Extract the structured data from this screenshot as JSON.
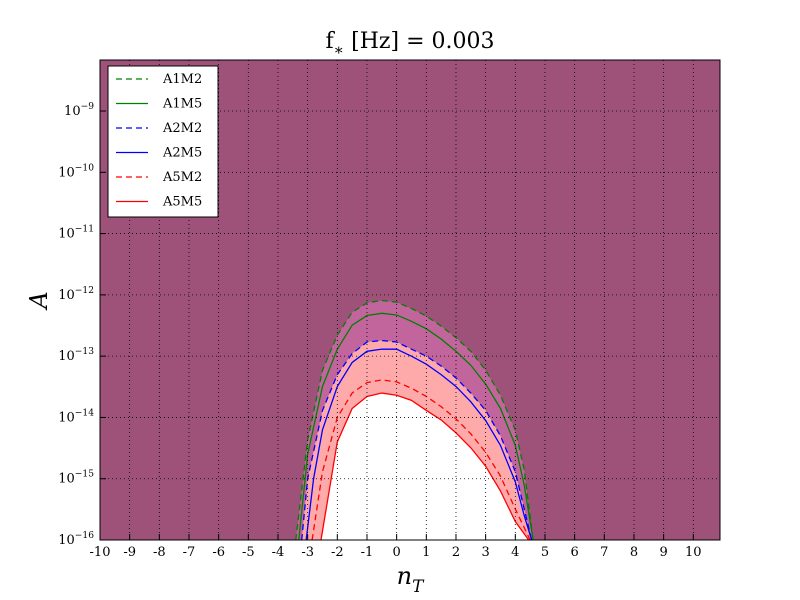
{
  "chart_data": {
    "type": "line",
    "title": "f_{∗} [Hz] = 0.003",
    "xlabel": "n_{T}",
    "ylabel": "A",
    "xlim": [
      -10,
      10.9
    ],
    "xticks": [
      -10,
      -9,
      -8,
      -7,
      -6,
      -5,
      -4,
      -3,
      -2,
      -1,
      0,
      1,
      2,
      3,
      4,
      5,
      6,
      7,
      8,
      9,
      10
    ],
    "ylim": [
      1e-16,
      6.8e-09
    ],
    "yscale": "log",
    "yticks": [
      {
        "value": 1e-16,
        "label": "10^{−16}"
      },
      {
        "value": 1e-15,
        "label": "10^{−15}"
      },
      {
        "value": 1e-14,
        "label": "10^{−14}"
      },
      {
        "value": 1e-13,
        "label": "10^{−13}"
      },
      {
        "value": 1e-12,
        "label": "10^{−12}"
      },
      {
        "value": 1e-11,
        "label": "10^{−11}"
      },
      {
        "value": 1e-10,
        "label": "10^{−10}"
      },
      {
        "value": 1e-09,
        "label": "10^{−9}"
      }
    ],
    "grid": true,
    "legend": "upper left",
    "plot_background": "#9e5279",
    "series": [
      {
        "name": "A1M2",
        "color": "#008000",
        "dash": true,
        "fill": "#c1659c",
        "x": [
          -3.4,
          -3,
          -2.5,
          -2,
          -1.5,
          -1,
          -0.5,
          0,
          0.5,
          1,
          1.5,
          2,
          2.5,
          3,
          3.5,
          4,
          4.3,
          4.6
        ],
        "values": [
          1e-16,
          4.3e-15,
          5.9e-14,
          2.2e-13,
          5.2e-13,
          7.4e-13,
          8.1e-13,
          7.6e-13,
          6e-13,
          4.5e-13,
          3.1e-13,
          2e-13,
          1.2e-13,
          5.9e-14,
          2.3e-14,
          6.2e-15,
          1.4e-15,
          1e-16
        ]
      },
      {
        "name": "A1M5",
        "color": "#008000",
        "dash": false,
        "x": [
          -3.3,
          -3,
          -2.5,
          -2,
          -1.5,
          -1,
          -0.5,
          0,
          0.5,
          1,
          1.5,
          2,
          2.5,
          3,
          3.5,
          4,
          4.3,
          4.6
        ],
        "values": [
          1e-16,
          2.5e-15,
          3.2e-14,
          1.3e-13,
          3.2e-13,
          4.6e-13,
          5e-13,
          4.7e-13,
          3.7e-13,
          2.8e-13,
          1.9e-13,
          1.2e-13,
          7.1e-14,
          3.5e-14,
          1.4e-14,
          3.5e-15,
          7.9e-16,
          1e-16
        ]
      },
      {
        "name": "A2M2",
        "color": "#0000ff",
        "dash": true,
        "fill": "#ffaaaa",
        "x": [
          -3.2,
          -3,
          -2.5,
          -2,
          -1.5,
          -1,
          -0.5,
          0,
          0.5,
          1,
          1.5,
          2,
          2.5,
          3,
          3.5,
          4,
          4.3,
          4.55
        ],
        "values": [
          1e-16,
          1e-15,
          1.3e-14,
          5e-14,
          1.1e-13,
          1.7e-13,
          1.8e-13,
          1.7e-13,
          1.3e-13,
          1e-13,
          6.9e-14,
          4.4e-14,
          2.5e-14,
          1.3e-14,
          5e-15,
          1.3e-15,
          3.2e-16,
          1e-16
        ]
      },
      {
        "name": "A2M5",
        "color": "#0000ff",
        "dash": false,
        "x": [
          -3.05,
          -2.8,
          -2.5,
          -2,
          -1.5,
          -1,
          -0.5,
          0,
          0.5,
          1,
          1.5,
          2,
          2.5,
          3,
          3.5,
          4,
          4.3,
          4.55
        ],
        "values": [
          1e-16,
          1e-15,
          6.3e-15,
          3.2e-14,
          7.9e-14,
          1.2e-13,
          1.3e-13,
          1.3e-13,
          1e-13,
          7.4e-14,
          5e-14,
          3.2e-14,
          1.8e-14,
          8.9e-15,
          3.5e-15,
          8.9e-16,
          2.5e-16,
          1e-16
        ]
      },
      {
        "name": "A5M2",
        "color": "#ff0000",
        "dash": true,
        "x": [
          -2.85,
          -2.5,
          -2,
          -1.5,
          -1,
          -0.5,
          0,
          0.5,
          1,
          1.5,
          2,
          2.5,
          3,
          3.5,
          4,
          4.5
        ],
        "values": [
          1e-16,
          1.3e-15,
          1e-14,
          2.5e-14,
          3.7e-14,
          4.1e-14,
          3.8e-14,
          3e-14,
          2.2e-14,
          1.5e-14,
          9.5e-15,
          5.4e-15,
          2.7e-15,
          1.1e-15,
          3.2e-16,
          1e-16
        ]
      },
      {
        "name": "A5M5",
        "color": "#ff0000",
        "dash": false,
        "fill": "#ffffff",
        "x": [
          -2.55,
          -2,
          -1.5,
          -1,
          -0.5,
          0,
          0.5,
          1,
          1.5,
          2,
          2.5,
          3,
          3.5,
          4,
          4.45
        ],
        "values": [
          1e-16,
          4e-15,
          1.4e-14,
          2.2e-14,
          2.5e-14,
          2.3e-14,
          1.9e-14,
          1.3e-14,
          9.1e-15,
          5.6e-15,
          3.2e-15,
          1.6e-15,
          6.3e-16,
          2e-16,
          1e-16
        ]
      }
    ]
  }
}
